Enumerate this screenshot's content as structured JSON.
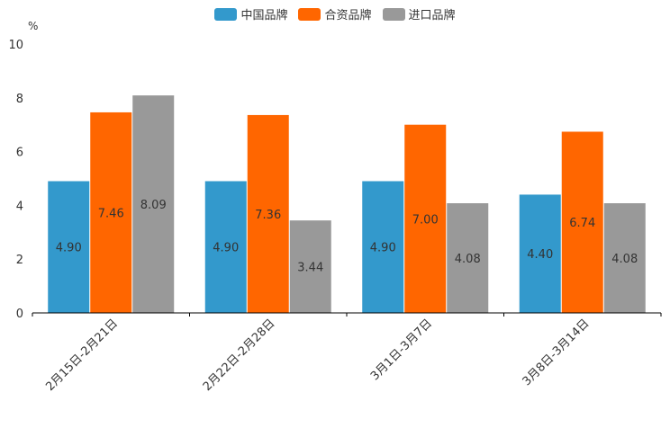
{
  "chart_data": {
    "type": "bar",
    "unit_label": "%",
    "categories": [
      "2月15日-2月21日",
      "2月22日-2月28日",
      "3月1日-3月7日",
      "3月8日-3月14日"
    ],
    "series": [
      {
        "name": "中国品牌",
        "color": "#3399cc",
        "values": [
          4.9,
          4.9,
          4.9,
          4.4
        ],
        "labels": [
          "4.90",
          "4.90",
          "4.90",
          "4.40"
        ]
      },
      {
        "name": "合资品牌",
        "color": "#ff6600",
        "values": [
          7.46,
          7.36,
          7.0,
          6.74
        ],
        "labels": [
          "7.46",
          "7.36",
          "7.00",
          "6.74"
        ]
      },
      {
        "name": "进口品牌",
        "color": "#999999",
        "values": [
          8.09,
          3.44,
          4.08,
          4.08
        ],
        "labels": [
          "8.09",
          "3.44",
          "4.08",
          "4.08"
        ]
      }
    ],
    "ylim": [
      0,
      10
    ],
    "yticks": [
      0,
      2,
      4,
      6,
      8,
      10
    ],
    "ytick_labels": [
      "0",
      "2",
      "4",
      "6",
      "8",
      "10"
    ],
    "legend_position": "top-center"
  }
}
